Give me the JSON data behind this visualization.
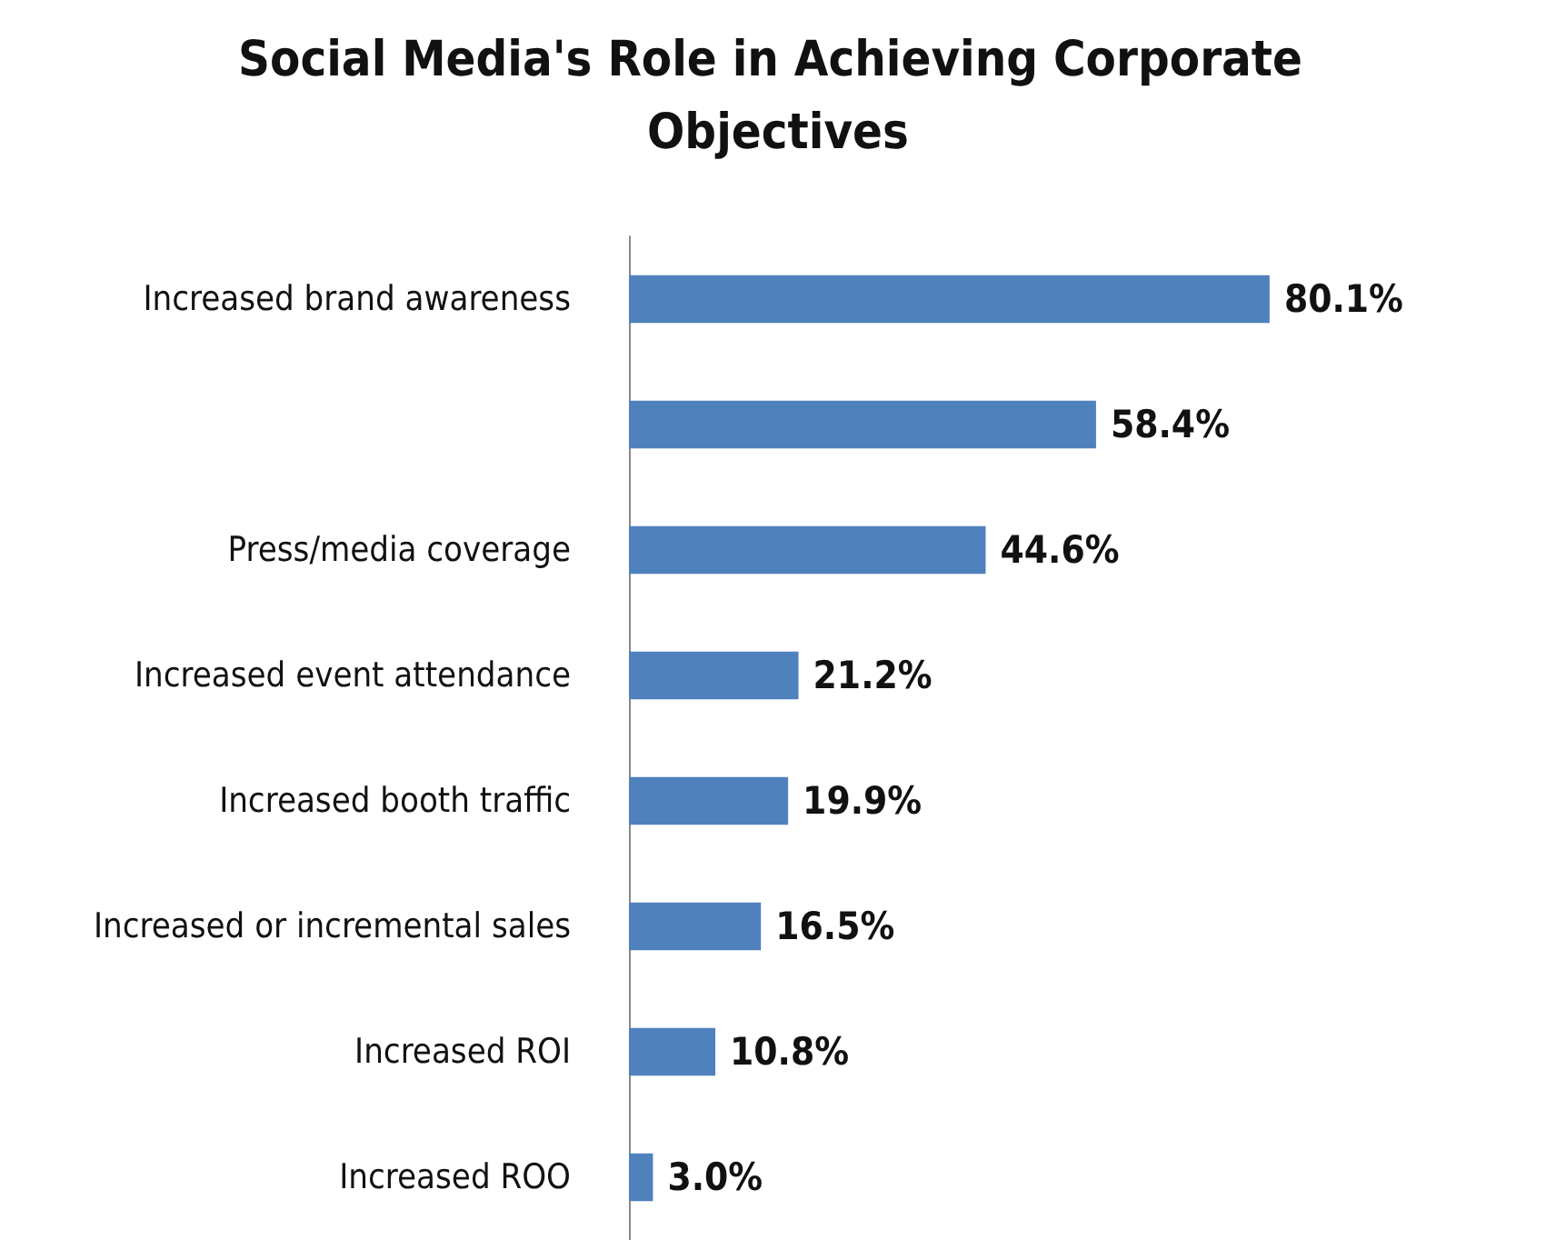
{
  "chart_data": {
    "type": "bar",
    "orientation": "horizontal",
    "title": "Social Media's Role in Achieving Corporate Objectives",
    "categories": [
      "Increased brand awareness",
      null,
      "Press/media coverage",
      "Increased event attendance",
      "Increased booth traffic",
      "Increased or incremental sales",
      "Increased ROI",
      "Increased ROO"
    ],
    "values": [
      80.1,
      58.4,
      44.6,
      21.2,
      19.9,
      16.5,
      10.8,
      3.0
    ],
    "value_labels": [
      "80.1%",
      "58.4%",
      "44.6%",
      "21.2%",
      "19.9%",
      "16.5%",
      "10.8%",
      "3.0%"
    ],
    "color": "#4f81bd"
  }
}
